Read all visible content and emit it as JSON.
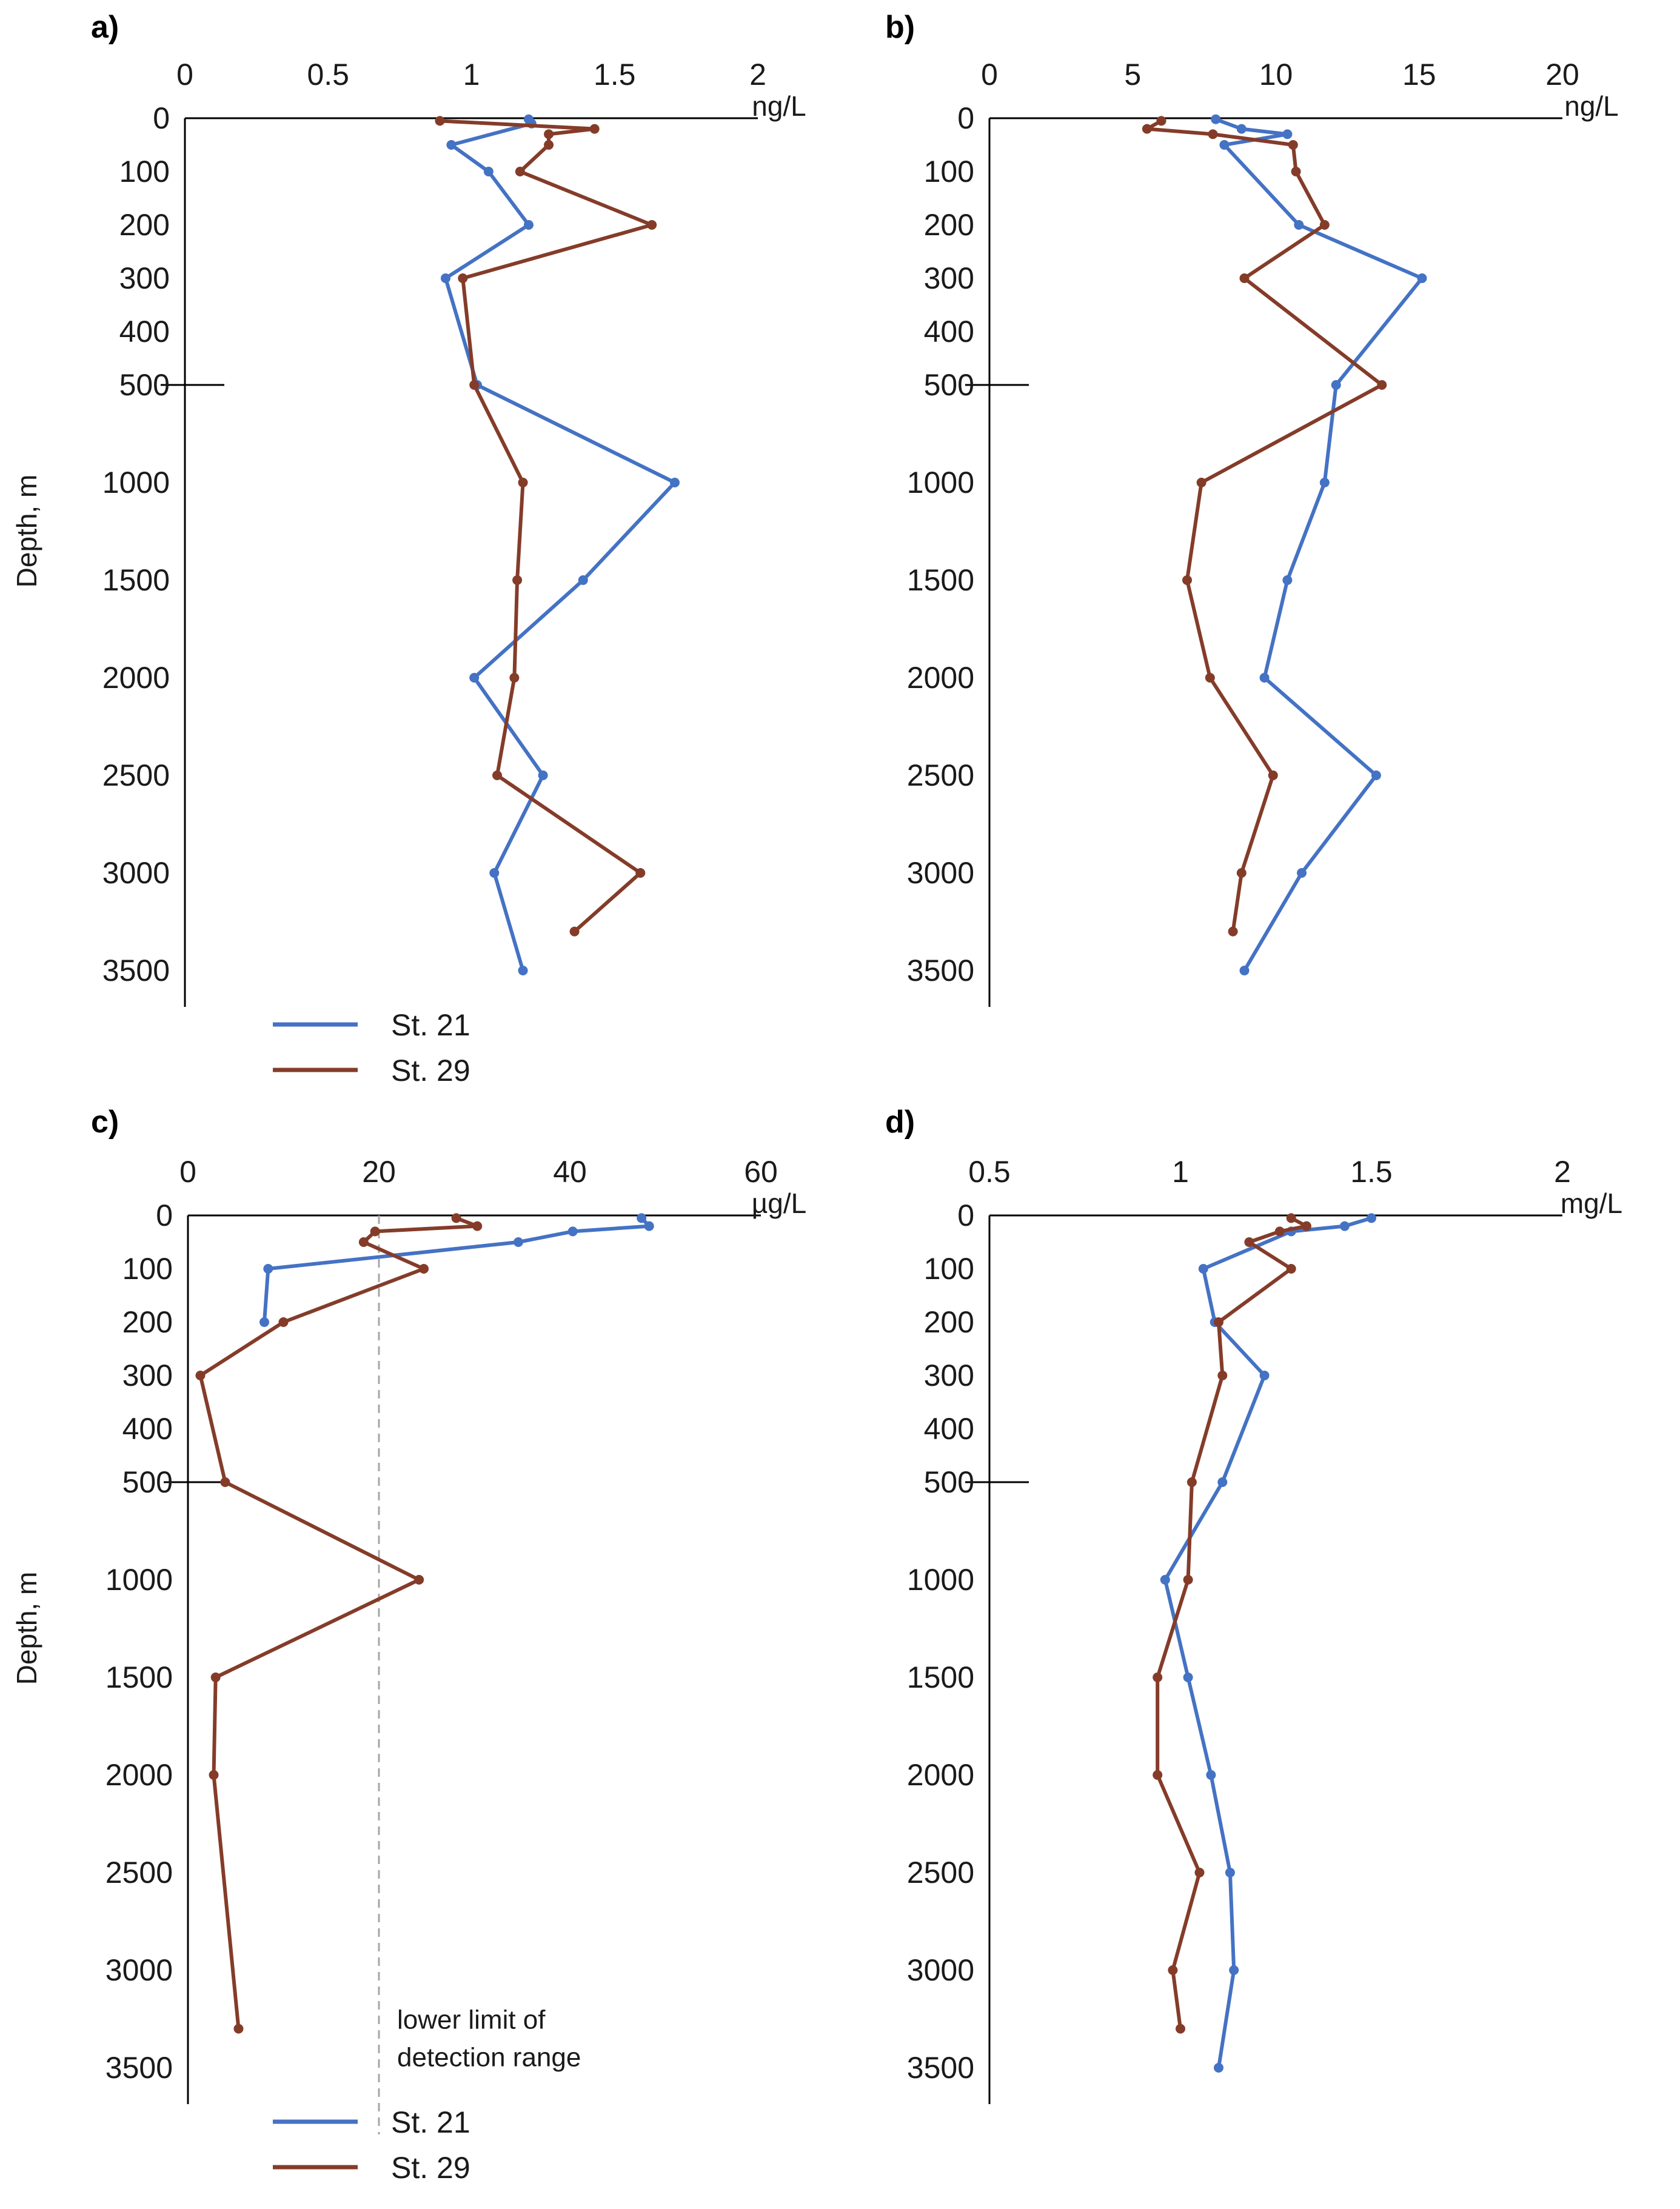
{
  "colors": {
    "st21": "#4472c4",
    "st29": "#843c29",
    "axis": "#000000",
    "dashed": "#a6a6a6"
  },
  "chart_data": [
    {
      "panel": "a)",
      "type": "line",
      "unit": "ng/L",
      "ylabel": "Depth, m",
      "xlim": [
        0,
        2
      ],
      "xticks": [
        0,
        0.5,
        1,
        1.5,
        2
      ],
      "xtick_labels": [
        "0",
        "0.5",
        "1",
        "1.5",
        "2"
      ],
      "yticks": [
        0,
        100,
        200,
        300,
        400,
        500,
        1000,
        1500,
        2000,
        2500,
        3000,
        3500
      ],
      "yscale": "split: linear 0-500 (upper), linear 500-3500 (lower)",
      "legend": [
        "St. 21",
        "St. 29"
      ],
      "series": [
        {
          "name": "St. 21",
          "color_key": "st21",
          "points": [
            [
              1.2,
              2
            ],
            [
              1.21,
              10
            ],
            [
              0.93,
              50
            ],
            [
              1.06,
              100
            ],
            [
              1.2,
              200
            ],
            [
              0.91,
              300
            ],
            [
              1.02,
              500
            ],
            [
              1.71,
              1000
            ],
            [
              1.39,
              1500
            ],
            [
              1.01,
              2000
            ],
            [
              1.25,
              2500
            ],
            [
              1.08,
              3000
            ],
            [
              1.18,
              3500
            ]
          ]
        },
        {
          "name": "St. 29",
          "color_key": "st29",
          "points": [
            [
              0.89,
              5
            ],
            [
              1.43,
              20
            ],
            [
              1.27,
              30
            ],
            [
              1.27,
              50
            ],
            [
              1.17,
              100
            ],
            [
              1.63,
              200
            ],
            [
              0.97,
              300
            ],
            [
              1.01,
              500
            ],
            [
              1.18,
              1000
            ],
            [
              1.16,
              1500
            ],
            [
              1.15,
              2000
            ],
            [
              1.09,
              2500
            ],
            [
              1.59,
              3000
            ],
            [
              1.36,
              3300
            ]
          ]
        }
      ]
    },
    {
      "panel": "b)",
      "type": "line",
      "unit": "ng/L",
      "xlim": [
        0,
        20
      ],
      "xticks": [
        0,
        5,
        10,
        15,
        20
      ],
      "xtick_labels": [
        "0",
        "5",
        "10",
        "15",
        "20"
      ],
      "yticks": [
        0,
        100,
        200,
        300,
        400,
        500,
        1000,
        1500,
        2000,
        2500,
        3000,
        3500
      ],
      "series": [
        {
          "name": "St. 21",
          "color_key": "st21",
          "points": [
            [
              7.9,
              2
            ],
            [
              8.8,
              20
            ],
            [
              10.4,
              30
            ],
            [
              8.2,
              50
            ],
            [
              10.8,
              200
            ],
            [
              15.1,
              300
            ],
            [
              12.1,
              500
            ],
            [
              11.7,
              1000
            ],
            [
              10.4,
              1500
            ],
            [
              9.6,
              2000
            ],
            [
              13.5,
              2500
            ],
            [
              10.9,
              3000
            ],
            [
              8.9,
              3500
            ]
          ]
        },
        {
          "name": "St. 29",
          "color_key": "st29",
          "points": [
            [
              6.0,
              5
            ],
            [
              5.5,
              20
            ],
            [
              7.8,
              30
            ],
            [
              10.6,
              50
            ],
            [
              10.7,
              100
            ],
            [
              11.7,
              200
            ],
            [
              8.9,
              300
            ],
            [
              13.7,
              500
            ],
            [
              7.4,
              1000
            ],
            [
              6.9,
              1500
            ],
            [
              7.7,
              2000
            ],
            [
              9.9,
              2500
            ],
            [
              8.8,
              3000
            ],
            [
              8.5,
              3300
            ]
          ]
        }
      ]
    },
    {
      "panel": "c)",
      "type": "line",
      "unit": "µg/L",
      "ylabel": "Depth, m",
      "xlim": [
        0,
        60
      ],
      "xticks": [
        0,
        20,
        40,
        60
      ],
      "xtick_labels": [
        "0",
        "20",
        "40",
        "60"
      ],
      "yticks": [
        0,
        100,
        200,
        300,
        400,
        500,
        1000,
        1500,
        2000,
        2500,
        3000,
        3500
      ],
      "legend": [
        "St. 21",
        "St. 29"
      ],
      "reference_line": {
        "x": 20,
        "style": "dashed",
        "label": [
          "lower limit of",
          "detection range"
        ]
      },
      "series": [
        {
          "name": "St. 21",
          "color_key": "st21",
          "points": [
            [
              47.5,
              5
            ],
            [
              48.3,
              20
            ],
            [
              40.3,
              30
            ],
            [
              34.6,
              50
            ],
            [
              8.4,
              100
            ],
            [
              8.0,
              200
            ]
          ]
        },
        {
          "name": "St. 29",
          "color_key": "st29",
          "points": [
            [
              28.1,
              5
            ],
            [
              30.3,
              20
            ],
            [
              19.6,
              30
            ],
            [
              18.4,
              50
            ],
            [
              24.7,
              100
            ],
            [
              10.0,
              200
            ],
            [
              1.3,
              300
            ],
            [
              3.9,
              500
            ],
            [
              24.2,
              1000
            ],
            [
              2.9,
              1500
            ],
            [
              2.7,
              2000
            ],
            [
              5.3,
              3300
            ]
          ]
        }
      ]
    },
    {
      "panel": "d)",
      "type": "line",
      "unit": "mg/L",
      "xlim": [
        0.5,
        2
      ],
      "xticks": [
        0.5,
        1,
        1.5,
        2
      ],
      "xtick_labels": [
        "0.5",
        "1",
        "1.5",
        "2"
      ],
      "yticks": [
        0,
        100,
        200,
        300,
        400,
        500,
        1000,
        1500,
        2000,
        2500,
        3000,
        3500
      ],
      "series": [
        {
          "name": "St. 21",
          "color_key": "st21",
          "points": [
            [
              1.5,
              5
            ],
            [
              1.43,
              20
            ],
            [
              1.29,
              30
            ],
            [
              1.06,
              100
            ],
            [
              1.09,
              200
            ],
            [
              1.22,
              300
            ],
            [
              1.11,
              500
            ],
            [
              0.96,
              1000
            ],
            [
              1.02,
              1500
            ],
            [
              1.08,
              2000
            ],
            [
              1.13,
              2500
            ],
            [
              1.14,
              3000
            ],
            [
              1.1,
              3500
            ]
          ]
        },
        {
          "name": "St. 29",
          "color_key": "st29",
          "points": [
            [
              1.29,
              5
            ],
            [
              1.33,
              20
            ],
            [
              1.26,
              30
            ],
            [
              1.18,
              50
            ],
            [
              1.29,
              100
            ],
            [
              1.1,
              200
            ],
            [
              1.11,
              300
            ],
            [
              1.03,
              500
            ],
            [
              1.02,
              1000
            ],
            [
              0.94,
              1500
            ],
            [
              0.94,
              2000
            ],
            [
              1.05,
              2500
            ],
            [
              0.98,
              3000
            ],
            [
              1.0,
              3300
            ]
          ]
        }
      ]
    }
  ]
}
